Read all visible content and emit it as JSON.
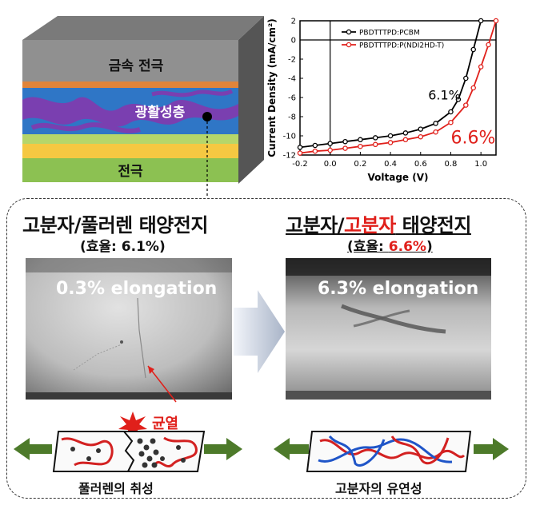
{
  "device": {
    "layer_top_label": "금속 전극",
    "layer_active_label": "광활성층",
    "layer_bottom_label": "전극",
    "colors": {
      "metal": "#8c8c8c",
      "orange": "#e0843a",
      "active_blue": "#2f76c6",
      "active_purple": "#7a3fb0",
      "green_yellow": "#b5d66a",
      "yellow": "#f5c842",
      "green": "#8cc152"
    }
  },
  "chart_data": {
    "type": "line",
    "xlabel": "Voltage (V)",
    "ylabel": "Current Density (mA/cm²)",
    "xlim": [
      -0.2,
      1.1
    ],
    "ylim": [
      -12,
      2
    ],
    "xticks": [
      "-0.2",
      "0.0",
      "0.2",
      "0.4",
      "0.6",
      "0.8",
      "1.0"
    ],
    "yticks": [
      "2",
      "0",
      "-2",
      "-4",
      "-6",
      "-8",
      "-10",
      "-12"
    ],
    "series": [
      {
        "name": "PBDTTTPD:PCBM",
        "color": "#000000",
        "x": [
          -0.2,
          -0.1,
          0.0,
          0.1,
          0.2,
          0.3,
          0.4,
          0.5,
          0.6,
          0.7,
          0.8,
          0.85,
          0.9,
          0.95,
          1.0
        ],
        "y": [
          -11.2,
          -11.0,
          -10.8,
          -10.6,
          -10.4,
          -10.2,
          -10.0,
          -9.7,
          -9.3,
          -8.7,
          -7.5,
          -6.2,
          -4.0,
          -1.0,
          2.0
        ]
      },
      {
        "name": "PBDTTTPD:P(NDI2HD-T)",
        "color": "#e0201b",
        "x": [
          -0.2,
          -0.1,
          0.0,
          0.1,
          0.2,
          0.3,
          0.4,
          0.5,
          0.6,
          0.7,
          0.8,
          0.9,
          0.95,
          1.0,
          1.05,
          1.1
        ],
        "y": [
          -11.8,
          -11.6,
          -11.5,
          -11.3,
          -11.1,
          -10.9,
          -10.7,
          -10.4,
          -10.1,
          -9.6,
          -8.6,
          -6.8,
          -5.0,
          -2.8,
          -0.5,
          2.0
        ]
      }
    ],
    "annotations": [
      {
        "text": "6.1%",
        "color": "#000000"
      },
      {
        "text": "6.6%",
        "color": "#e0201b"
      }
    ]
  },
  "left_panel": {
    "title_part1": "고분자/풀러렌 태양전지",
    "efficiency_prefix": "(효율: ",
    "efficiency_value": "6.1%",
    "efficiency_suffix": ")",
    "photo_label": "0.3% elongation",
    "crack_label": "균열",
    "caption": "풀러렌의 취성"
  },
  "right_panel": {
    "title_part1": "고분자/",
    "title_part2": "고분자",
    "title_part3": " 태양전지",
    "efficiency_prefix": "(효율: ",
    "efficiency_value": "6.6%",
    "efficiency_suffix": ")",
    "photo_label": "6.3% elongation",
    "caption": "고분자의 유연성"
  }
}
